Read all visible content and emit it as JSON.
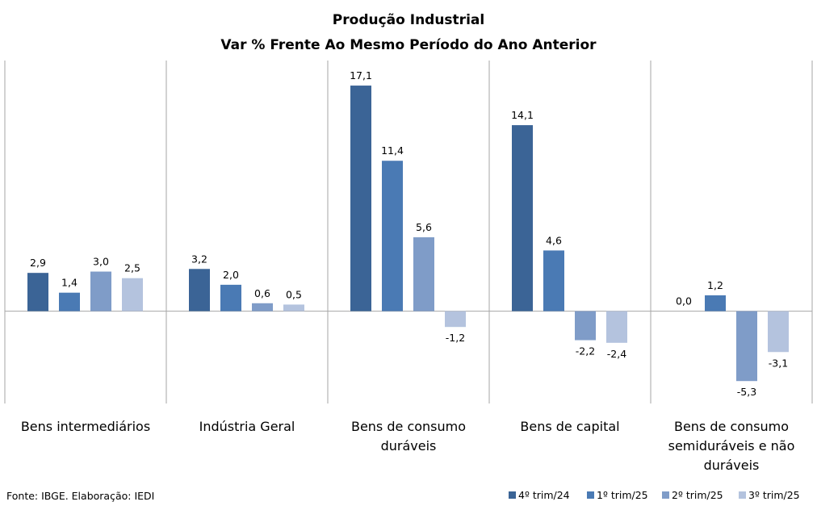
{
  "chart_data": {
    "type": "bar",
    "title": "Produção Industrial",
    "subtitle": "Var % Frente Ao Mesmo Período do Ano Anterior",
    "categories": [
      [
        "Bens intermediários"
      ],
      [
        "Indústria Geral"
      ],
      [
        "Bens de consumo",
        "duráveis"
      ],
      [
        "Bens de capital"
      ],
      [
        "Bens de consumo",
        "semiduráveis e não",
        "duráveis"
      ]
    ],
    "series": [
      {
        "name": "4º trim/24",
        "color": "#3B6496",
        "values": [
          2.9,
          3.2,
          17.1,
          14.1,
          0.0
        ]
      },
      {
        "name": "1º trim/25",
        "color": "#4A7AB4",
        "values": [
          1.4,
          2.0,
          11.4,
          4.6,
          1.2
        ]
      },
      {
        "name": "2º trim/25",
        "color": "#7F9CC8",
        "values": [
          3.0,
          0.6,
          5.6,
          -2.2,
          -5.3
        ]
      },
      {
        "name": "3º trim/25",
        "color": "#B4C3DE",
        "values": [
          2.5,
          0.5,
          -1.2,
          -2.4,
          -3.1
        ]
      }
    ],
    "ylim": [
      -7,
      19
    ],
    "grid": false,
    "legend_position": "bottom-right",
    "source": "Fonte: IBGE. Elaboração: IEDI"
  }
}
